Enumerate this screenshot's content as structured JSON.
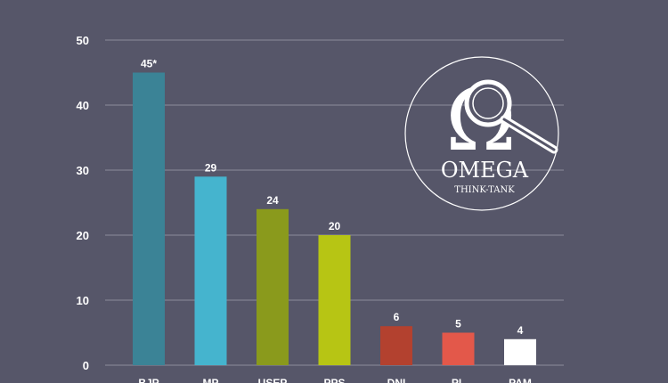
{
  "chart_data": {
    "type": "bar",
    "categories": [
      "BJP",
      "MP",
      "USEP",
      "PPS",
      "DNI",
      "PL",
      "PAM"
    ],
    "values": [
      45,
      29,
      24,
      20,
      6,
      5,
      4
    ],
    "data_labels": [
      "45*",
      "29",
      "24",
      "20",
      "6",
      "5",
      "4"
    ],
    "colors": [
      "#3b8396",
      "#45b4ce",
      "#8a9a1c",
      "#b7c514",
      "#b3412f",
      "#e3584a",
      "#ffffff"
    ],
    "ylim": [
      0,
      50
    ],
    "yticks": [
      "0",
      "10",
      "20",
      "30",
      "40",
      "50"
    ],
    "grid": true,
    "title": "",
    "xlabel": "",
    "ylabel": ""
  },
  "logo": {
    "symbol": "Ω",
    "name": "OMEGA",
    "tagline": "THINK-TANK",
    "icon": "magnifying-glass-icon"
  }
}
